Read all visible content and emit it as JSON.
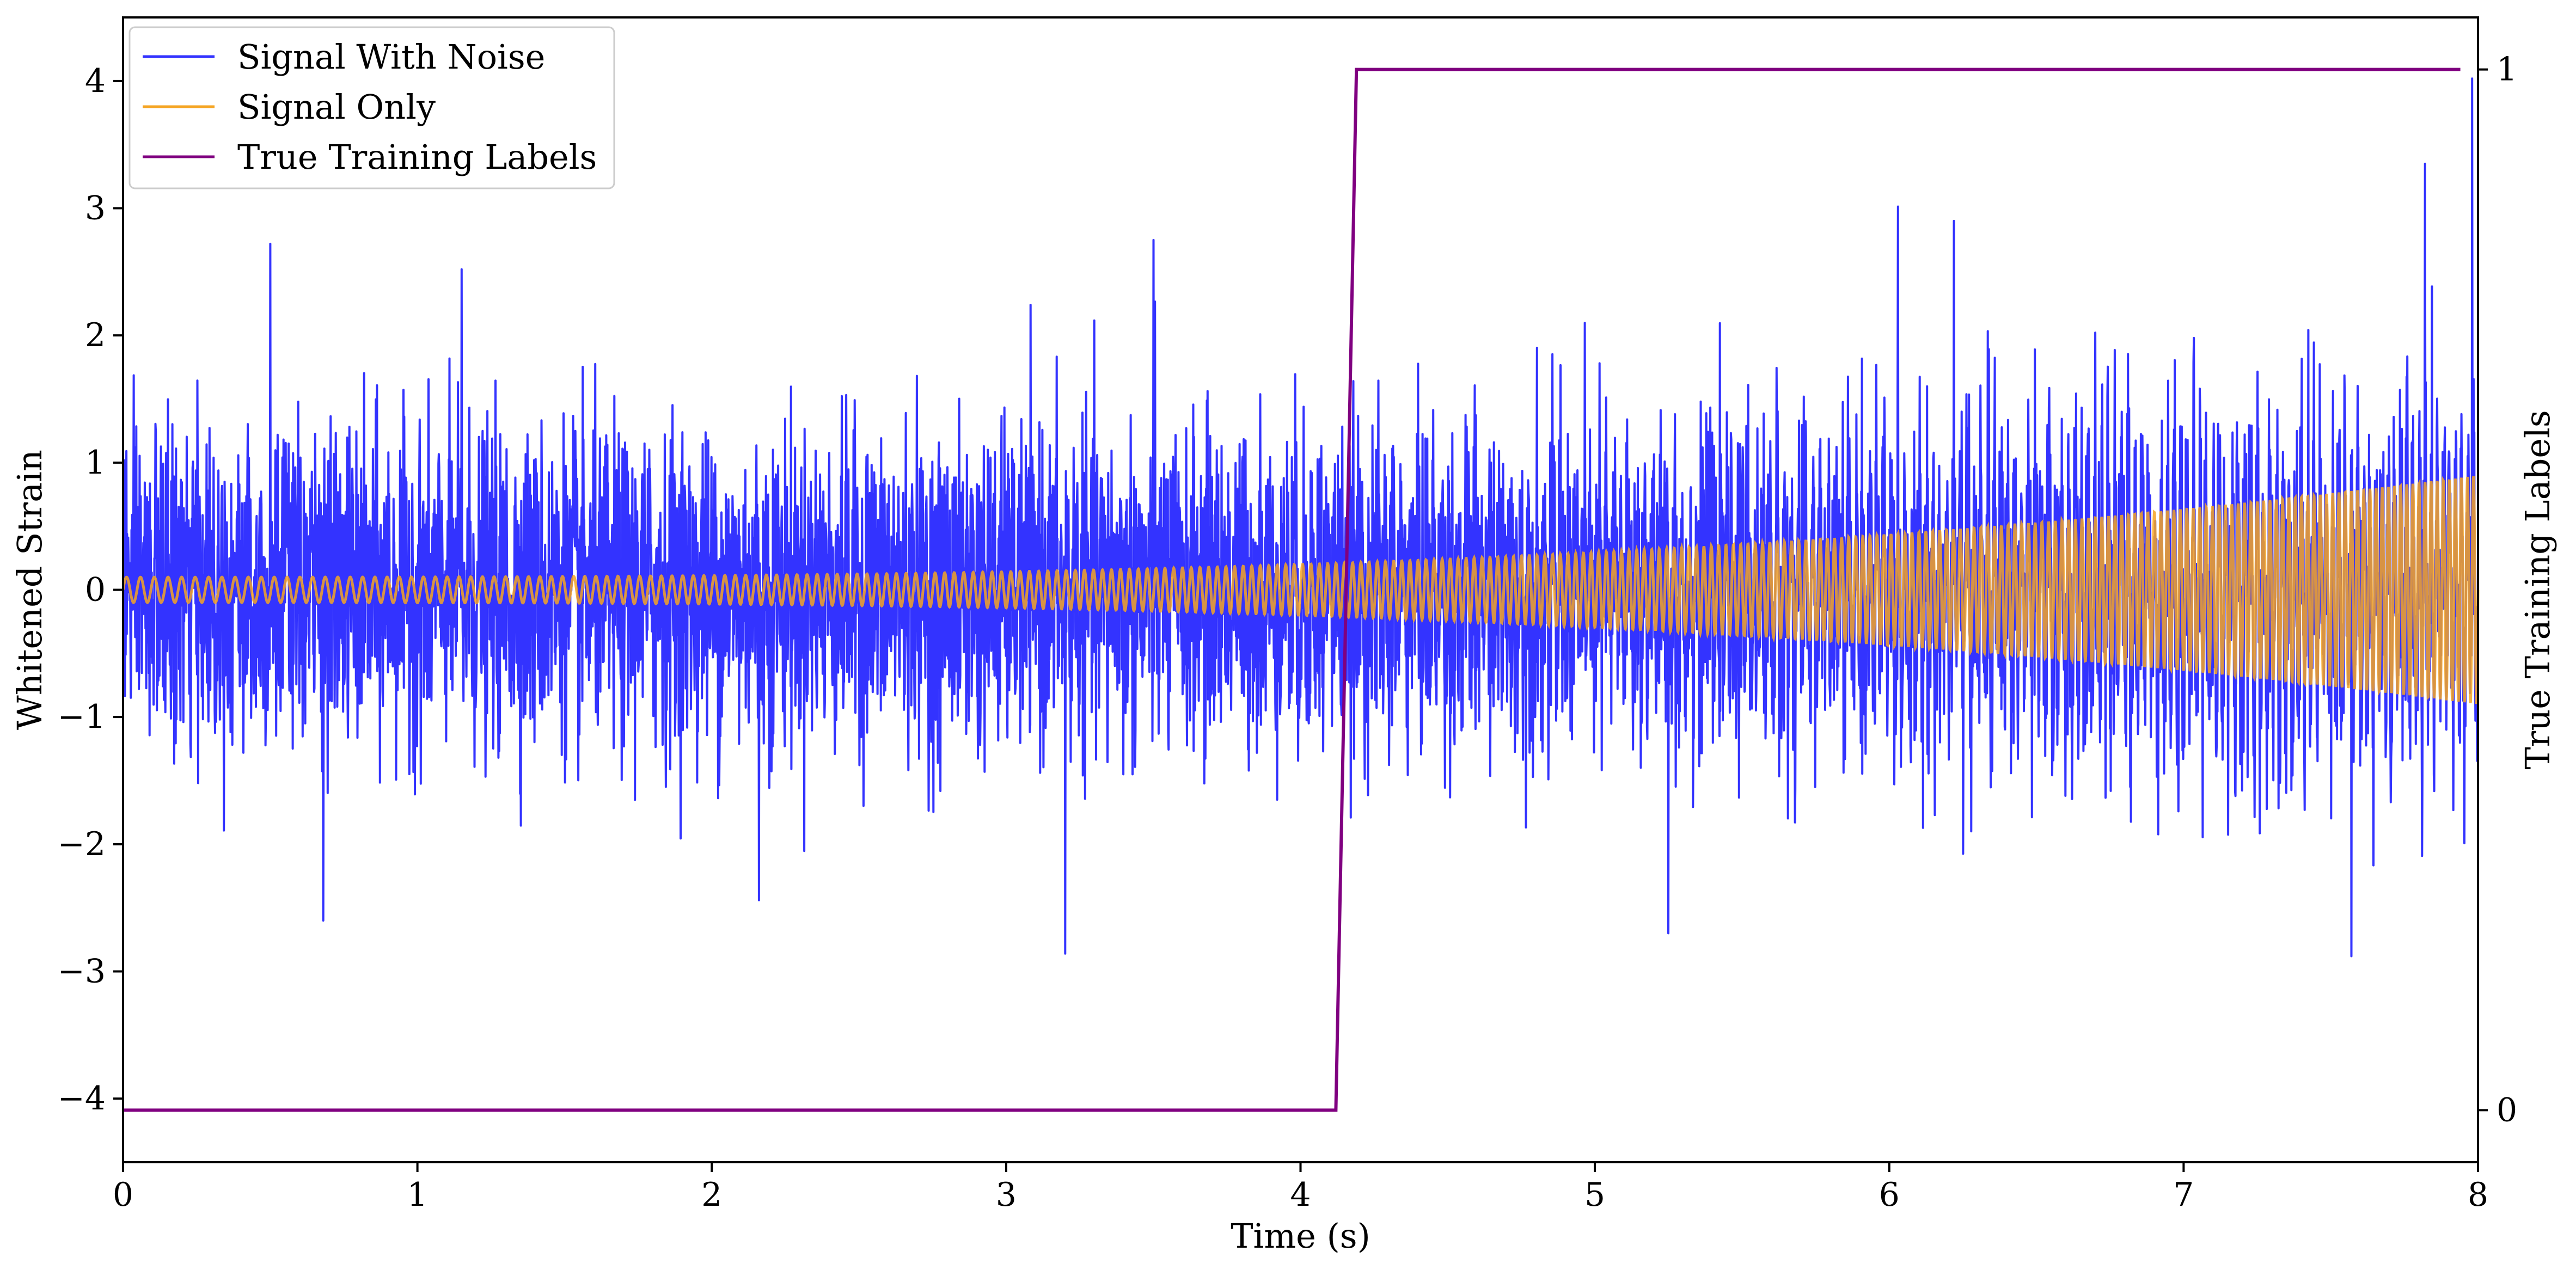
{
  "chart_data": {
    "type": "line",
    "title": "",
    "xlabel": "Time (s)",
    "ylabel": "Whitened Strain",
    "ylabel_right": "True Training Labels",
    "xlim": [
      0,
      8
    ],
    "ylim": [
      -4.5,
      4.5
    ],
    "ylim_right": [
      -0.05,
      1.05
    ],
    "x_ticks": [
      0,
      1,
      2,
      3,
      4,
      5,
      6,
      7,
      8
    ],
    "x_tick_labels": [
      "0",
      "1",
      "2",
      "3",
      "4",
      "5",
      "6",
      "7",
      "8"
    ],
    "y_ticks": [
      -4,
      -3,
      -2,
      -1,
      0,
      1,
      2,
      3,
      4
    ],
    "y_tick_labels": [
      "−4",
      "−3",
      "−2",
      "−1",
      "0",
      "1",
      "2",
      "3",
      "4"
    ],
    "y_right_ticks": [
      0,
      1
    ],
    "y_right_tick_labels": [
      "0",
      "1"
    ],
    "grid": false,
    "legend_position": "top-left",
    "series": [
      {
        "name": "Signal With Noise",
        "color": "#3333ff",
        "axis": "left",
        "description_stats": {
          "std": 0.6,
          "min": -2.9,
          "max": 4.0
        },
        "spikes": [
          [
            0.5,
            2.72
          ],
          [
            0.68,
            -2.6
          ],
          [
            1.15,
            2.52
          ],
          [
            2.16,
            -2.44
          ],
          [
            3.2,
            -2.86
          ],
          [
            3.5,
            2.75
          ],
          [
            5.25,
            -2.7
          ],
          [
            6.22,
            2.9
          ],
          [
            7.57,
            -2.88
          ],
          [
            7.82,
            3.35
          ],
          [
            7.98,
            4.02
          ]
        ]
      },
      {
        "name": "Signal Only",
        "color": "#f5a524",
        "axis": "left",
        "amplitude_start": 0.1,
        "amplitude_end": 0.9,
        "cycles": 280
      },
      {
        "name": "True Training Labels",
        "color": "#800080",
        "axis": "right",
        "x": [
          0,
          4.12,
          4.19,
          7.94
        ],
        "y": [
          0,
          0,
          1,
          1
        ]
      }
    ]
  }
}
